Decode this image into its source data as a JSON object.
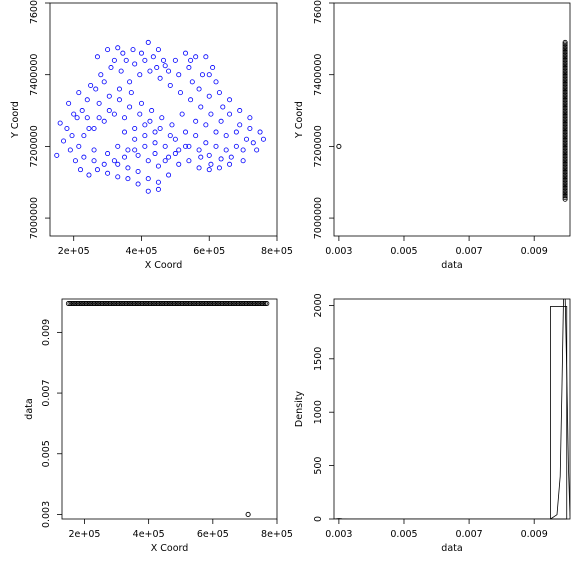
{
  "chart_data": [
    {
      "type": "scatter",
      "xlabel": "X Coord",
      "ylabel": "Y Coord",
      "xlim": [
        130000,
        800000
      ],
      "ylim": [
        6950000,
        7600000
      ],
      "xticks": [
        {
          "value": 200000,
          "label": "2e+05"
        },
        {
          "value": 400000,
          "label": "4e+05"
        },
        {
          "value": 600000,
          "label": "6e+05"
        },
        {
          "value": 800000,
          "label": "8e+05"
        }
      ],
      "yticks": [
        {
          "value": 7000000,
          "label": "7000000"
        },
        {
          "value": 7200000,
          "label": "7200000"
        },
        {
          "value": 7400000,
          "label": "7400000"
        },
        {
          "value": 7600000,
          "label": "7600000"
        }
      ],
      "marker": "open-circle",
      "color": "#0000ff",
      "points": [
        [
          150000,
          7175000
        ],
        [
          170000,
          7215000
        ],
        [
          160000,
          7265000
        ],
        [
          185000,
          7320000
        ],
        [
          200000,
          7290000
        ],
        [
          215000,
          7350000
        ],
        [
          225000,
          7300000
        ],
        [
          250000,
          7370000
        ],
        [
          270000,
          7450000
        ],
        [
          300000,
          7470000
        ],
        [
          330000,
          7475000
        ],
        [
          355000,
          7440000
        ],
        [
          380000,
          7430000
        ],
        [
          400000,
          7460000
        ],
        [
          420000,
          7490000
        ],
        [
          450000,
          7470000
        ],
        [
          470000,
          7425000
        ],
        [
          500000,
          7440000
        ],
        [
          530000,
          7460000
        ],
        [
          560000,
          7450000
        ],
        [
          590000,
          7450000
        ],
        [
          610000,
          7420000
        ],
        [
          620000,
          7380000
        ],
        [
          600000,
          7340000
        ],
        [
          640000,
          7310000
        ],
        [
          660000,
          7290000
        ],
        [
          690000,
          7260000
        ],
        [
          720000,
          7250000
        ],
        [
          750000,
          7240000
        ],
        [
          760000,
          7220000
        ],
        [
          740000,
          7190000
        ],
        [
          700000,
          7160000
        ],
        [
          660000,
          7150000
        ],
        [
          630000,
          7140000
        ],
        [
          600000,
          7135000
        ],
        [
          570000,
          7140000
        ],
        [
          540000,
          7160000
        ],
        [
          510000,
          7150000
        ],
        [
          480000,
          7120000
        ],
        [
          450000,
          7080000
        ],
        [
          420000,
          7075000
        ],
        [
          390000,
          7095000
        ],
        [
          360000,
          7110000
        ],
        [
          330000,
          7115000
        ],
        [
          300000,
          7125000
        ],
        [
          270000,
          7135000
        ],
        [
          245000,
          7120000
        ],
        [
          220000,
          7135000
        ],
        [
          205000,
          7160000
        ],
        [
          190000,
          7190000
        ],
        [
          195000,
          7230000
        ],
        [
          230000,
          7230000
        ],
        [
          260000,
          7250000
        ],
        [
          290000,
          7270000
        ],
        [
          320000,
          7290000
        ],
        [
          350000,
          7280000
        ],
        [
          380000,
          7250000
        ],
        [
          410000,
          7230000
        ],
        [
          440000,
          7210000
        ],
        [
          470000,
          7200000
        ],
        [
          500000,
          7220000
        ],
        [
          530000,
          7240000
        ],
        [
          560000,
          7230000
        ],
        [
          590000,
          7210000
        ],
        [
          620000,
          7200000
        ],
        [
          650000,
          7190000
        ],
        [
          680000,
          7200000
        ],
        [
          710000,
          7220000
        ],
        [
          300000,
          7180000
        ],
        [
          330000,
          7200000
        ],
        [
          360000,
          7190000
        ],
        [
          390000,
          7175000
        ],
        [
          420000,
          7160000
        ],
        [
          450000,
          7145000
        ],
        [
          480000,
          7170000
        ],
        [
          510000,
          7190000
        ],
        [
          540000,
          7200000
        ],
        [
          570000,
          7190000
        ],
        [
          600000,
          7175000
        ],
        [
          260000,
          7190000
        ],
        [
          240000,
          7280000
        ],
        [
          275000,
          7320000
        ],
        [
          305000,
          7340000
        ],
        [
          335000,
          7360000
        ],
        [
          365000,
          7380000
        ],
        [
          395000,
          7400000
        ],
        [
          425000,
          7410000
        ],
        [
          455000,
          7390000
        ],
        [
          485000,
          7370000
        ],
        [
          515000,
          7350000
        ],
        [
          545000,
          7330000
        ],
        [
          575000,
          7310000
        ],
        [
          605000,
          7290000
        ],
        [
          635000,
          7270000
        ],
        [
          280000,
          7400000
        ],
        [
          310000,
          7420000
        ],
        [
          340000,
          7410000
        ],
        [
          370000,
          7350000
        ],
        [
          400000,
          7320000
        ],
        [
          430000,
          7300000
        ],
        [
          460000,
          7280000
        ],
        [
          490000,
          7260000
        ],
        [
          520000,
          7290000
        ],
        [
          550000,
          7380000
        ],
        [
          580000,
          7400000
        ],
        [
          435000,
          7450000
        ],
        [
          465000,
          7440000
        ],
        [
          540000,
          7420000
        ],
        [
          570000,
          7360000
        ],
        [
          350000,
          7240000
        ],
        [
          380000,
          7220000
        ],
        [
          410000,
          7260000
        ],
        [
          440000,
          7240000
        ],
        [
          330000,
          7150000
        ],
        [
          360000,
          7140000
        ],
        [
          390000,
          7130000
        ],
        [
          420000,
          7110000
        ],
        [
          450000,
          7100000
        ],
        [
          180000,
          7250000
        ],
        [
          210000,
          7280000
        ],
        [
          240000,
          7330000
        ],
        [
          265000,
          7360000
        ],
        [
          290000,
          7380000
        ],
        [
          320000,
          7440000
        ],
        [
          345000,
          7460000
        ],
        [
          375000,
          7470000
        ],
        [
          410000,
          7440000
        ],
        [
          445000,
          7420000
        ],
        [
          480000,
          7410000
        ],
        [
          510000,
          7400000
        ],
        [
          545000,
          7440000
        ],
        [
          600000,
          7400000
        ],
        [
          630000,
          7350000
        ],
        [
          660000,
          7330000
        ],
        [
          690000,
          7300000
        ],
        [
          720000,
          7280000
        ],
        [
          680000,
          7240000
        ],
        [
          650000,
          7230000
        ],
        [
          620000,
          7240000
        ],
        [
          590000,
          7260000
        ],
        [
          560000,
          7270000
        ],
        [
          530000,
          7200000
        ],
        [
          500000,
          7180000
        ],
        [
          470000,
          7160000
        ],
        [
          440000,
          7180000
        ],
        [
          410000,
          7200000
        ],
        [
          380000,
          7190000
        ],
        [
          350000,
          7170000
        ],
        [
          320000,
          7160000
        ],
        [
          290000,
          7150000
        ],
        [
          260000,
          7160000
        ],
        [
          230000,
          7170000
        ],
        [
          700000,
          7190000
        ],
        [
          730000,
          7210000
        ],
        [
          575000,
          7170000
        ],
        [
          605000,
          7150000
        ],
        [
          635000,
          7165000
        ],
        [
          665000,
          7170000
        ],
        [
          485000,
          7230000
        ],
        [
          455000,
          7250000
        ],
        [
          425000,
          7270000
        ],
        [
          395000,
          7290000
        ],
        [
          365000,
          7310000
        ],
        [
          335000,
          7330000
        ],
        [
          305000,
          7300000
        ],
        [
          275000,
          7280000
        ],
        [
          245000,
          7250000
        ],
        [
          215000,
          7200000
        ]
      ]
    },
    {
      "type": "scatter",
      "xlabel": "data",
      "ylabel": "Y Coord",
      "xlim": [
        0.00285,
        0.0101
      ],
      "ylim": [
        6950000,
        7600000
      ],
      "xticks": [
        {
          "value": 0.003,
          "label": "0.003"
        },
        {
          "value": 0.005,
          "label": "0.005"
        },
        {
          "value": 0.007,
          "label": "0.007"
        },
        {
          "value": 0.009,
          "label": "0.009"
        }
      ],
      "yticks": [
        {
          "value": 7000000,
          "label": "7000000"
        },
        {
          "value": 7200000,
          "label": "7200000"
        },
        {
          "value": 7400000,
          "label": "7400000"
        },
        {
          "value": 7600000,
          "label": "7600000"
        }
      ],
      "marker": "open-circle",
      "color": "#000000",
      "outlier": {
        "x": 0.003,
        "y": 7200000
      },
      "cluster": {
        "x": 0.00995,
        "y_min": 7050000,
        "y_max": 7490000
      }
    },
    {
      "type": "scatter",
      "xlabel": "X Coord",
      "ylabel": "data",
      "xlim": [
        130000,
        800000
      ],
      "ylim": [
        0.00285,
        0.0101
      ],
      "xticks": [
        {
          "value": 200000,
          "label": "2e+05"
        },
        {
          "value": 400000,
          "label": "4e+05"
        },
        {
          "value": 600000,
          "label": "6e+05"
        },
        {
          "value": 800000,
          "label": "8e+05"
        }
      ],
      "yticks": [
        {
          "value": 0.003,
          "label": "0.003"
        },
        {
          "value": 0.005,
          "label": "0.005"
        },
        {
          "value": 0.007,
          "label": "0.007"
        },
        {
          "value": 0.009,
          "label": "0.009"
        }
      ],
      "marker": "open-circle",
      "color": "#000000",
      "outlier": {
        "x": 710000,
        "y": 0.003
      },
      "cluster": {
        "y": 0.00995,
        "x_min": 150000,
        "x_max": 770000
      }
    },
    {
      "type": "histogram",
      "xlabel": "data",
      "ylabel": "Density",
      "xlim": [
        0.00285,
        0.0101
      ],
      "ylim": [
        0,
        2060
      ],
      "xticks": [
        {
          "value": 0.003,
          "label": "0.003"
        },
        {
          "value": 0.005,
          "label": "0.005"
        },
        {
          "value": 0.007,
          "label": "0.007"
        },
        {
          "value": 0.009,
          "label": "0.009"
        }
      ],
      "yticks": [
        {
          "value": 0,
          "label": "0"
        },
        {
          "value": 500,
          "label": "500"
        },
        {
          "value": 1000,
          "label": "1000"
        },
        {
          "value": 1500,
          "label": "1500"
        },
        {
          "value": 2000,
          "label": "2000"
        }
      ],
      "bins": [
        {
          "x0": 0.0095,
          "x1": 0.01,
          "density": 1990
        }
      ],
      "density_curve": [
        [
          0.00285,
          0
        ],
        [
          0.003,
          5
        ],
        [
          0.0031,
          2
        ],
        [
          0.0033,
          0
        ],
        [
          0.0095,
          0
        ],
        [
          0.0097,
          40
        ],
        [
          0.0098,
          400
        ],
        [
          0.00985,
          1200
        ],
        [
          0.0099,
          2060
        ],
        [
          0.00995,
          2100
        ],
        [
          0.01,
          1400
        ],
        [
          0.01005,
          500
        ],
        [
          0.0101,
          30
        ]
      ]
    }
  ]
}
